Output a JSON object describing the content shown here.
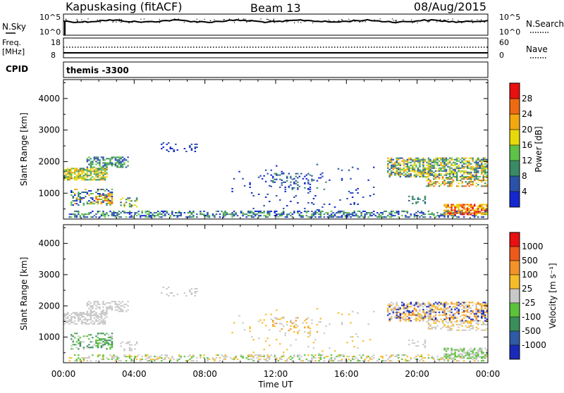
{
  "header": {
    "title": "Kapuskasing (fitACF)",
    "beam": "Beam 13",
    "date": "08/Aug/2015"
  },
  "nsky_panel": {
    "left_label": "N.Sky",
    "right_label": "N.Search",
    "left_ticks": [
      "10^5",
      "10^0"
    ],
    "right_ticks": [
      "10^5",
      "10^0"
    ]
  },
  "freq_panel": {
    "left_label_1": "Freq.",
    "left_label_2": "[MHz]",
    "right_label": "Nave",
    "left_ticks": [
      "18",
      "8"
    ],
    "right_ticks": [
      "60",
      "0"
    ]
  },
  "cpid_panel": {
    "label": "CPID",
    "value": "themis -3300"
  },
  "chart_data": [
    {
      "type": "heatmap",
      "name": "power",
      "ylabel": "Slant Range [km]",
      "ylim": [
        180,
        4600
      ],
      "yticks": [
        1000,
        2000,
        3000,
        4000
      ],
      "colorbar": {
        "label": "Power [dB]",
        "ticks": [
          "28",
          "24",
          "20",
          "16",
          "12",
          "8",
          "4"
        ],
        "colors": [
          "#1428d2",
          "#2a52a8",
          "#3a8a66",
          "#5ec247",
          "#e8d90a",
          "#f4a810",
          "#ee6a12",
          "#e81010"
        ]
      }
    },
    {
      "type": "heatmap",
      "name": "velocity",
      "ylabel": "Slant Range [km]",
      "ylim": [
        180,
        4600
      ],
      "yticks": [
        1000,
        2000,
        3000,
        4000
      ],
      "xlabel": "Time UT",
      "xticks": [
        "00:00",
        "04:00",
        "08:00",
        "12:00",
        "16:00",
        "20:00",
        "00:00"
      ],
      "colorbar": {
        "label": "Velocity [m s⁻¹]",
        "ticks": [
          "1000",
          "500",
          "100",
          "25",
          "-25",
          "-100",
          "-500",
          "-1000"
        ],
        "colors": [
          "#1a2ab8",
          "#2f5aa6",
          "#3a8e5a",
          "#5bc23a",
          "#c8c8c8",
          "#f5bd2a",
          "#f2932a",
          "#ee5a1a",
          "#e81010"
        ]
      }
    }
  ]
}
